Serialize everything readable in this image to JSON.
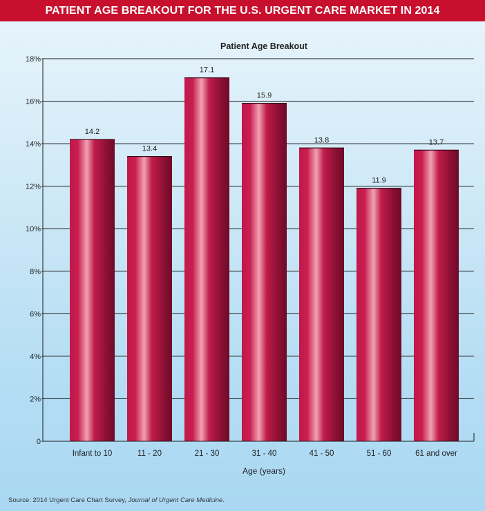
{
  "banner": {
    "title": "PATIENT AGE BREAKOUT FOR THE U.S. URGENT CARE MARKET IN 2014"
  },
  "source": {
    "prefix": "Source: 2014 Urgent Care Chart Survey, ",
    "journal": "Journal of Urgent Care Medicine",
    "suffix": "."
  },
  "chart_data": {
    "type": "bar",
    "title": "Patient Age Breakout",
    "xlabel": "Age (years)",
    "ylabel": "",
    "categories": [
      "Infant to 10",
      "11 - 20",
      "21 - 30",
      "31 - 40",
      "41 - 50",
      "51 - 60",
      "61 and over"
    ],
    "values": [
      14.2,
      13.4,
      17.1,
      15.9,
      13.8,
      11.9,
      13.7
    ],
    "data_labels": [
      "14.2",
      "13.4",
      "17.1",
      "15.9",
      "13.8",
      "11.9",
      "13.7"
    ],
    "ylim": [
      0,
      18
    ],
    "yticks": [
      0,
      2,
      4,
      6,
      8,
      10,
      12,
      14,
      16,
      18
    ],
    "ytick_labels": [
      "0",
      "2%",
      "4%",
      "6%",
      "8%",
      "10%",
      "12%",
      "14%",
      "16%",
      "18%"
    ],
    "grid": true,
    "legend": "none",
    "colors": {
      "bar": "#c41e4a",
      "bar_highlight": "#f2a3b3",
      "bar_shadow": "#7a0e2c",
      "grid": "#000000"
    }
  }
}
